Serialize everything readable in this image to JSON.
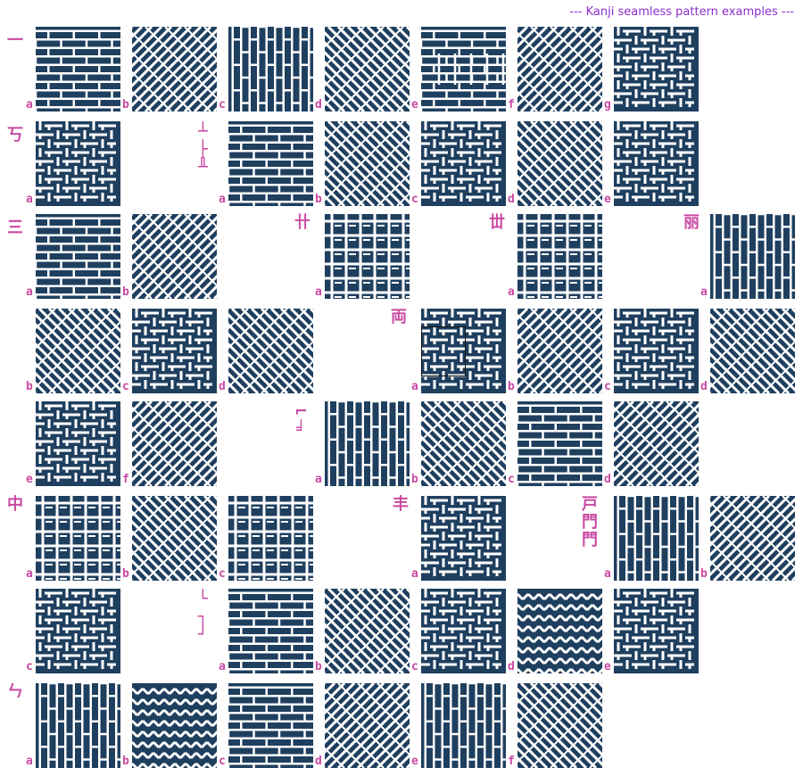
{
  "title": "--- Kanji seamless pattern examples ---",
  "colors": {
    "tile": "#1f3f5f",
    "line": "#ffffff",
    "label": "#c94aa2",
    "title": "#8b2fc9"
  },
  "groups": [
    {
      "kanji": "一",
      "labels": [
        "a",
        "b",
        "c",
        "d",
        "e",
        "f",
        "g"
      ]
    },
    {
      "kanji": "丂",
      "labels": [
        "a"
      ]
    },
    {
      "kanji": "┴",
      "labels": [
        "a",
        "b",
        "c",
        "d",
        "e"
      ]
    },
    {
      "kanji": "三",
      "labels": [
        "a",
        "b"
      ]
    },
    {
      "kanji": "卄",
      "labels": [
        "a"
      ]
    },
    {
      "kanji": "丗",
      "labels": [
        "a"
      ]
    },
    {
      "kanji": "丽",
      "labels": [
        "a"
      ]
    },
    {
      "kanji": "両",
      "labels": [
        "a",
        "b",
        "c",
        "d",
        "e",
        "f"
      ]
    },
    {
      "kanji": "卜",
      "labels": [
        "a",
        "b",
        "c",
        "d"
      ]
    },
    {
      "kanji": "中",
      "labels": [
        "a",
        "b",
        "c"
      ]
    },
    {
      "kanji": "丰",
      "labels": [
        "a"
      ]
    },
    {
      "kanji": "門",
      "labels": [
        "a",
        "b",
        "c"
      ]
    },
    {
      "kanji": "⌐",
      "labels": [
        "a",
        "b",
        "c",
        "d",
        "e"
      ]
    },
    {
      "kanji": "ㄣ",
      "labels": [
        "a",
        "b",
        "c",
        "d",
        "e",
        "f"
      ]
    }
  ]
}
